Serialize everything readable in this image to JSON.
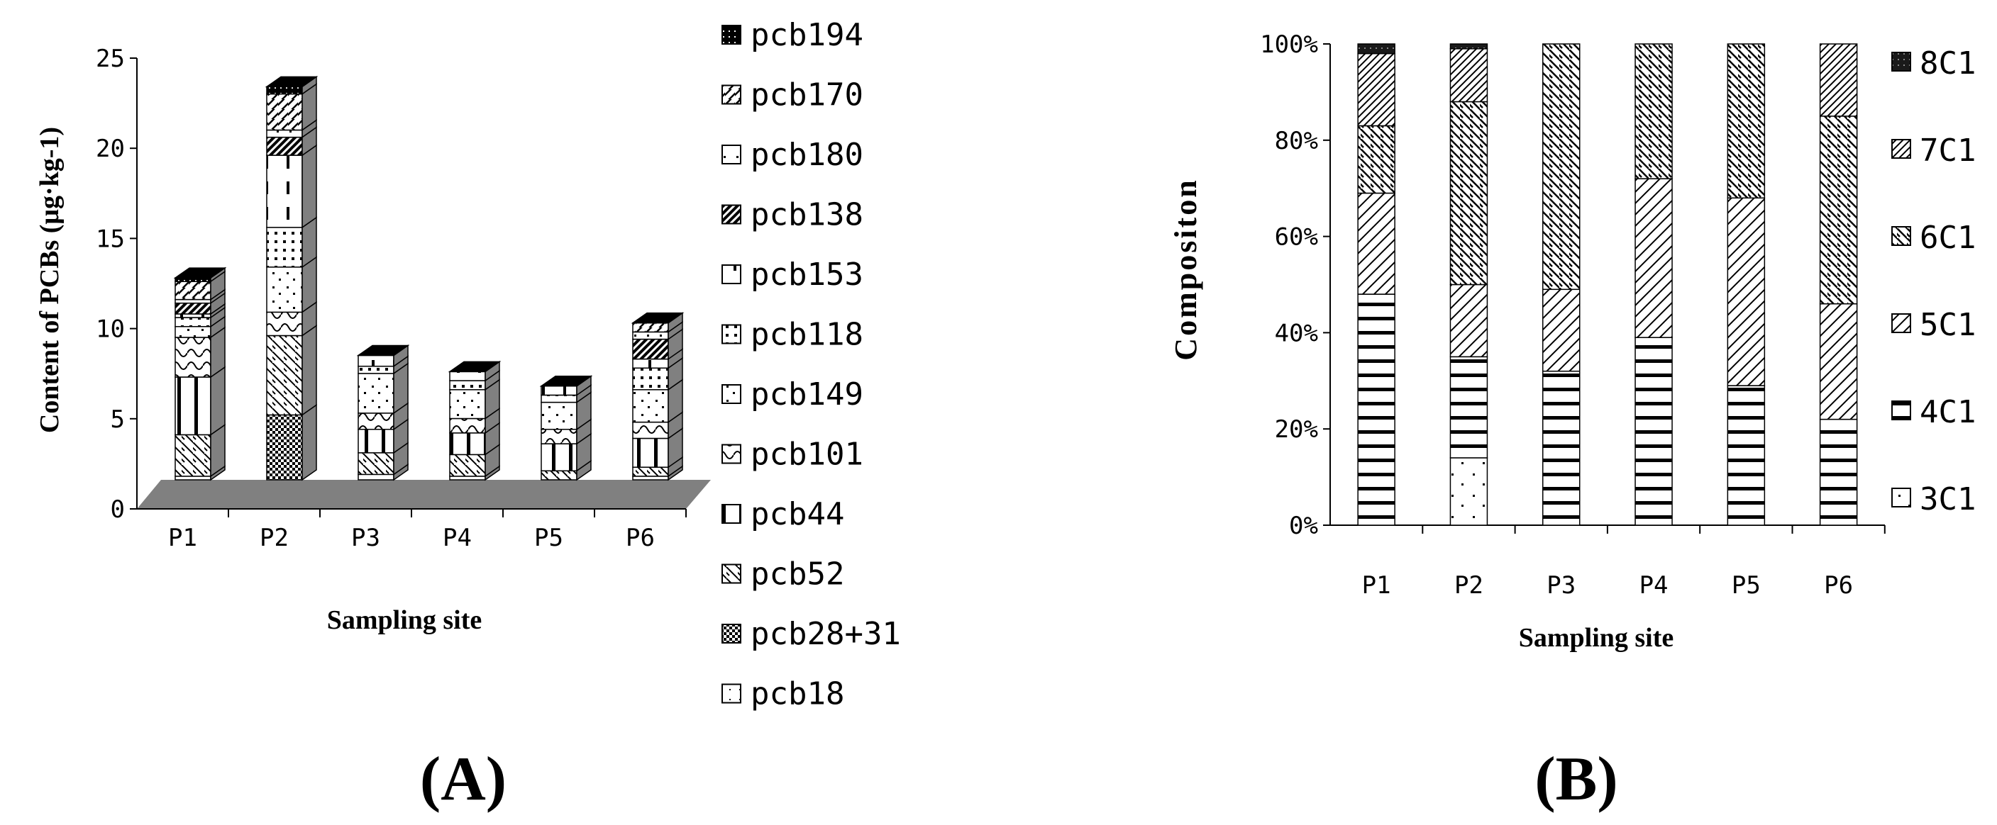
{
  "chart_data": [
    {
      "type": "bar",
      "panel_label": "(A)",
      "title": "",
      "xlabel": "Sampling site",
      "ylabel": "Content of PCBs (μg·kg-1)",
      "ylim": [
        0,
        25
      ],
      "yticks": [
        "0",
        "5",
        "10",
        "15",
        "20",
        "25"
      ],
      "categories": [
        "P1",
        "P2",
        "P3",
        "P4",
        "P5",
        "P6"
      ],
      "stacked": true,
      "grid": false,
      "legend_position": "right",
      "series": [
        {
          "name": "pcb18",
          "values": [
            0.2,
            0,
            0.3,
            0.2,
            0,
            0.2
          ]
        },
        {
          "name": "pcb28+31",
          "values": [
            0,
            3.6,
            0,
            0,
            0,
            0
          ]
        },
        {
          "name": "pcb52",
          "values": [
            2.3,
            4.4,
            1.2,
            1.2,
            0.5,
            0.5
          ]
        },
        {
          "name": "pcb44",
          "values": [
            3.2,
            0,
            1.3,
            1.2,
            1.5,
            1.6
          ]
        },
        {
          "name": "pcb101",
          "values": [
            2.2,
            1.3,
            0.9,
            0.8,
            0.8,
            0.9
          ]
        },
        {
          "name": "pcb149",
          "values": [
            0.6,
            2.5,
            2.2,
            1.6,
            1.5,
            1.8
          ]
        },
        {
          "name": "pcb118",
          "values": [
            0.5,
            2.2,
            0.4,
            0.5,
            0.4,
            1.2
          ]
        },
        {
          "name": "pcb153",
          "values": [
            0.2,
            4.0,
            0.6,
            0.5,
            0.5,
            0.5
          ]
        },
        {
          "name": "pcb138",
          "values": [
            0.6,
            1.0,
            0,
            0,
            0,
            1.1
          ]
        },
        {
          "name": "pcb180",
          "values": [
            0.2,
            0.4,
            0,
            0,
            0,
            0.4
          ]
        },
        {
          "name": "pcb170",
          "values": [
            1.0,
            2.0,
            0,
            0,
            0,
            0.5
          ]
        },
        {
          "name": "pcb194",
          "values": [
            0.2,
            0.4,
            0,
            0,
            0,
            0
          ]
        }
      ]
    },
    {
      "type": "bar",
      "panel_label": "(B)",
      "title": "",
      "xlabel": "Sampling site",
      "ylabel": "Compositon",
      "ylim": [
        0,
        100
      ],
      "yticks": [
        "0%",
        "20%",
        "40%",
        "60%",
        "80%",
        "100%"
      ],
      "categories": [
        "P1",
        "P2",
        "P3",
        "P4",
        "P5",
        "P6"
      ],
      "stacked": true,
      "percent": true,
      "grid": false,
      "legend_position": "right",
      "series": [
        {
          "name": "3Cl",
          "values": [
            0,
            14,
            0,
            0,
            0,
            0
          ]
        },
        {
          "name": "4Cl",
          "values": [
            48,
            21,
            32,
            39,
            29,
            22
          ]
        },
        {
          "name": "5Cl",
          "values": [
            21,
            15,
            17,
            33,
            39,
            24
          ]
        },
        {
          "name": "6Cl",
          "values": [
            14,
            38,
            51,
            28,
            32,
            39
          ]
        },
        {
          "name": "7Cl",
          "values": [
            15,
            11,
            0,
            0,
            0,
            15
          ]
        },
        {
          "name": "8Cl",
          "values": [
            2,
            1,
            0,
            0,
            0,
            0
          ]
        }
      ]
    }
  ],
  "legend_a_labels": [
    "pcb194",
    "pcb170",
    "pcb180",
    "pcb138",
    "pcb153",
    "pcb118",
    "pcb149",
    "pcb101",
    "pcb44",
    "pcb52",
    "pcb28+31",
    "pcb18"
  ],
  "legend_b_labels": [
    "8C1",
    "7C1",
    "6C1",
    "5C1",
    "4C1",
    "3C1"
  ]
}
